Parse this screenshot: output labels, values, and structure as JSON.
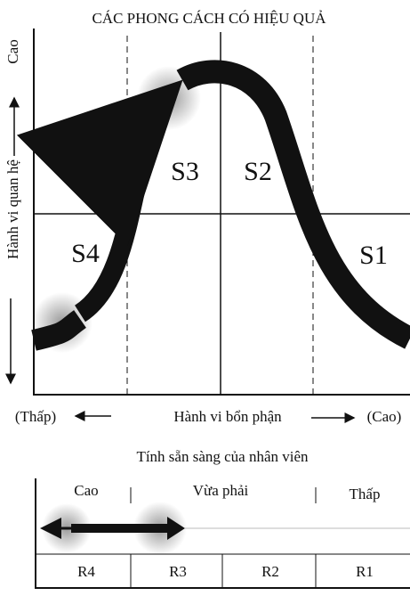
{
  "title": "CÁC PHONG CÁCH CÓ HIỆU QUẢ",
  "y_axis": {
    "high": "Cao",
    "label": "Hành vi quan hệ"
  },
  "quadrants": [
    "S1",
    "S2",
    "S3",
    "S4"
  ],
  "x_axis": {
    "low": "(Thấp)",
    "label": "Hành vi bổn phận",
    "high": "(Cao)"
  },
  "readiness": {
    "title": "Tính sẵn sàng của nhân viên",
    "levels": [
      "Cao",
      "Vừa phải",
      "Thấp"
    ],
    "codes": [
      "R4",
      "R3",
      "R2",
      "R1"
    ]
  }
}
